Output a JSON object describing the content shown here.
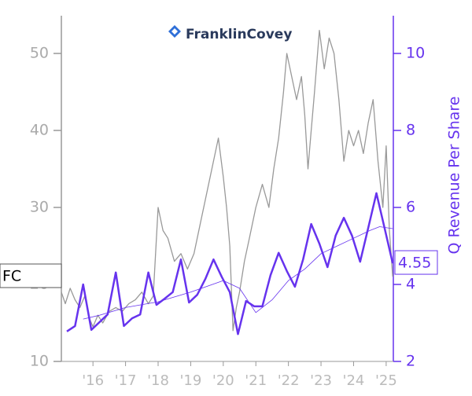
{
  "chart_data": {
    "type": "line",
    "logo": "FranklinCovey",
    "y2label": "Q Revenue Per Share",
    "xlim": [
      2015.03,
      2025.22
    ],
    "xticks": [
      {
        "value": 2016,
        "label": "'16"
      },
      {
        "value": 2017,
        "label": "'17"
      },
      {
        "value": 2018,
        "label": "'18"
      },
      {
        "value": 2019,
        "label": "'19"
      },
      {
        "value": 2020,
        "label": "'20"
      },
      {
        "value": 2021,
        "label": "'21"
      },
      {
        "value": 2022,
        "label": "'22"
      },
      {
        "value": 2023,
        "label": "'23"
      },
      {
        "value": 2024,
        "label": "'24"
      },
      {
        "value": 2025,
        "label": "'25"
      }
    ],
    "ylim": [
      10,
      54.9
    ],
    "yticks": [
      10,
      20,
      30,
      40,
      50
    ],
    "y2lim": [
      2,
      10.98
    ],
    "y2ticks": [
      2,
      4,
      6,
      8,
      10
    ],
    "series": [
      {
        "name": "FC",
        "color": "#999999",
        "x": [
          2015.03,
          2015.15,
          2015.3,
          2015.45,
          2015.6,
          2015.75,
          2015.9,
          2016.0,
          2016.15,
          2016.3,
          2016.5,
          2016.7,
          2016.9,
          2017.1,
          2017.3,
          2017.5,
          2017.7,
          2017.85,
          2018.0,
          2018.15,
          2018.3,
          2018.5,
          2018.7,
          2018.9,
          2019.1,
          2019.3,
          2019.5,
          2019.65,
          2019.85,
          2020.0,
          2020.1,
          2020.2,
          2020.3,
          2020.4,
          2020.5,
          2020.65,
          2020.8,
          2021.0,
          2021.2,
          2021.4,
          2021.55,
          2021.7,
          2021.85,
          2021.95,
          2022.1,
          2022.25,
          2022.4,
          2022.5,
          2022.6,
          2022.7,
          2022.8,
          2022.95,
          2023.1,
          2023.25,
          2023.4,
          2023.55,
          2023.7,
          2023.85,
          2024.0,
          2024.15,
          2024.3,
          2024.45,
          2024.6,
          2024.75,
          2024.9,
          2025.0,
          2025.1,
          2025.2
        ],
        "values": [
          19,
          17.5,
          19.5,
          18,
          17,
          18.5,
          15.5,
          14.5,
          16,
          15,
          16.5,
          17,
          16.5,
          17.5,
          18,
          19,
          17.5,
          18.5,
          30,
          27,
          26,
          23,
          24,
          22,
          24,
          28,
          32,
          35,
          39,
          34,
          30,
          25,
          14,
          17,
          19,
          23,
          26,
          30,
          33,
          30,
          35,
          39,
          45,
          50,
          47,
          44,
          47,
          42,
          35,
          40,
          45,
          53,
          48,
          52,
          50,
          44,
          36,
          40,
          38,
          40,
          37,
          41,
          44,
          36,
          30,
          38,
          27,
          21
        ]
      },
      {
        "color": "#6633ee",
        "axis": "y2",
        "x": [
          2015.2,
          2015.45,
          2015.7,
          2015.95,
          2016.2,
          2016.45,
          2016.7,
          2016.95,
          2017.2,
          2017.45,
          2017.7,
          2017.95,
          2018.2,
          2018.45,
          2018.7,
          2018.95,
          2019.2,
          2019.45,
          2019.7,
          2019.95,
          2020.2,
          2020.45,
          2020.7,
          2020.95,
          2021.2,
          2021.45,
          2021.7,
          2021.95,
          2022.2,
          2022.45,
          2022.7,
          2022.95,
          2023.2,
          2023.45,
          2023.7,
          2023.95,
          2024.2,
          2024.45,
          2024.7,
          2024.95,
          2025.2
        ],
        "values": [
          2.78,
          2.92,
          4.0,
          2.82,
          3.02,
          3.22,
          4.31,
          2.92,
          3.12,
          3.22,
          4.31,
          3.47,
          3.63,
          3.8,
          4.65,
          3.53,
          3.73,
          4.14,
          4.65,
          4.2,
          3.8,
          2.71,
          3.57,
          3.43,
          3.43,
          4.24,
          4.82,
          4.35,
          3.94,
          4.65,
          5.57,
          5.06,
          4.45,
          5.27,
          5.73,
          5.27,
          4.59,
          5.47,
          6.37,
          5.47,
          4.55
        ]
      },
      {
        "color": "#6633ee",
        "axis": "y2",
        "x": [
          2015.7,
          2016.2,
          2017.0,
          2018.0,
          2019.0,
          2020.0,
          2020.5,
          2021.0,
          2021.5,
          2022.0,
          2022.5,
          2023.0,
          2023.5,
          2024.0,
          2024.5,
          2024.8,
          2025.2
        ],
        "values": [
          3.1,
          3.2,
          3.4,
          3.55,
          3.8,
          4.1,
          3.9,
          3.27,
          3.6,
          4.1,
          4.4,
          4.8,
          5.0,
          5.2,
          5.4,
          5.5,
          5.45
        ]
      }
    ]
  }
}
